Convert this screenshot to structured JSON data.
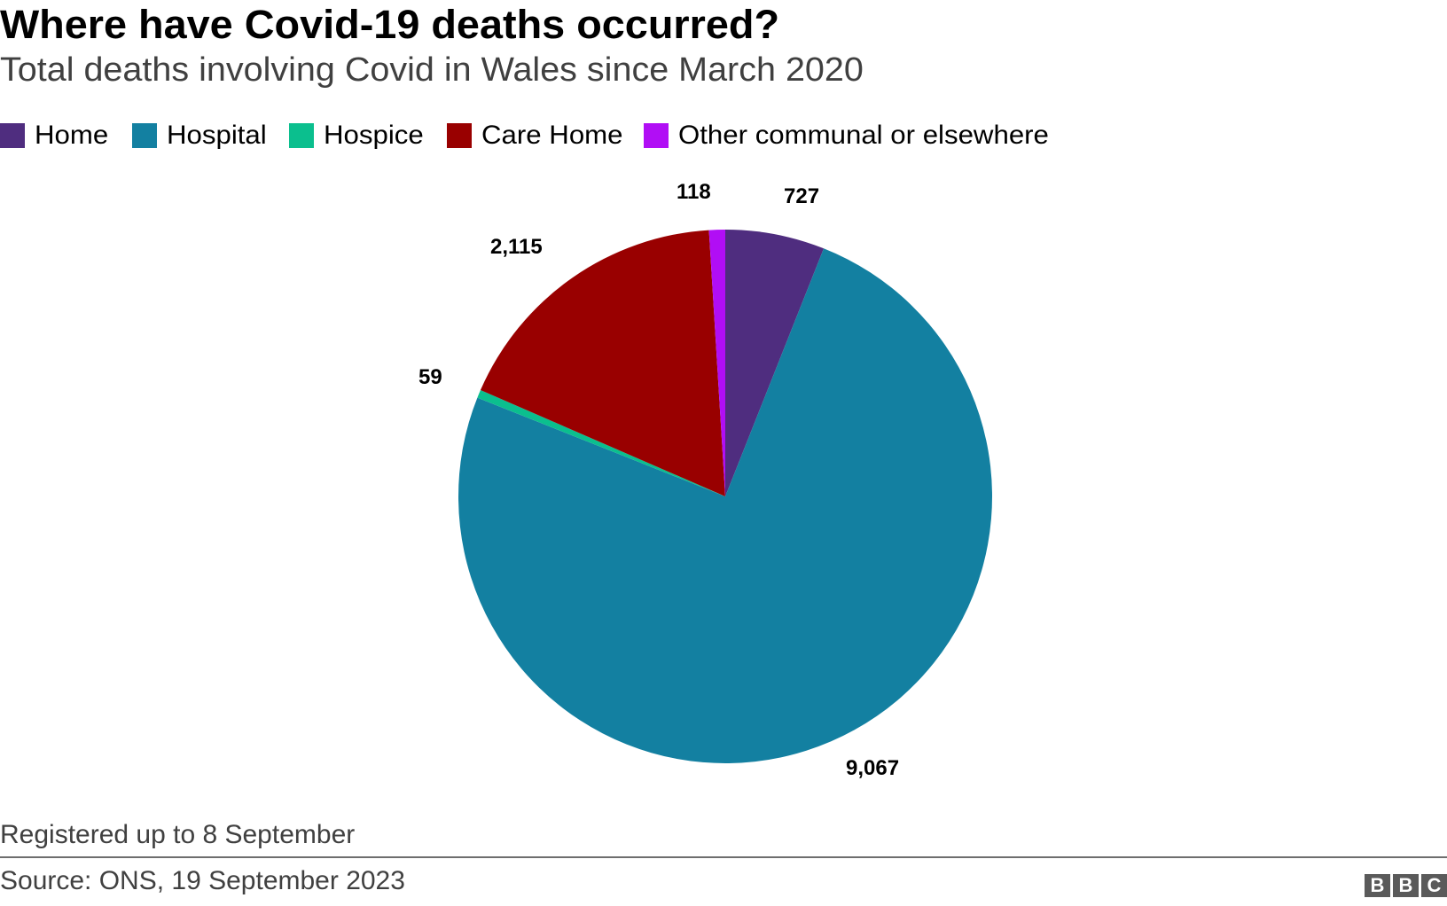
{
  "title": "Where have Covid-19 deaths occurred?",
  "subtitle": "Total deaths involving Covid in Wales since March 2020",
  "legend": [
    {
      "label": "Home",
      "color": "#4f2d7f"
    },
    {
      "label": "Hospital",
      "color": "#1380a1"
    },
    {
      "label": "Hospice",
      "color": "#0bbf8e"
    },
    {
      "label": "Care Home",
      "color": "#990000"
    },
    {
      "label": "Other communal or elsewhere",
      "color": "#b10ef5"
    }
  ],
  "labels": {
    "home": "727",
    "hospital": "9,067",
    "hospice": "59",
    "care_home": "2,115",
    "other": "118"
  },
  "footer": {
    "note": "Registered up to 8 September",
    "source": "Source: ONS, 19 September 2023",
    "logo": [
      "B",
      "B",
      "C"
    ]
  },
  "chart_data": {
    "type": "pie",
    "title": "Where have Covid-19 deaths occurred?",
    "subtitle": "Total deaths involving Covid in Wales since March 2020",
    "categories": [
      "Home",
      "Hospital",
      "Hospice",
      "Care Home",
      "Other communal or elsewhere"
    ],
    "values": [
      727,
      9067,
      59,
      2115,
      118
    ],
    "colors": [
      "#4f2d7f",
      "#1380a1",
      "#0bbf8e",
      "#990000",
      "#b10ef5"
    ],
    "start_angle_deg": 0,
    "direction": "clockwise",
    "legend_position": "top",
    "note": "Registered up to 8 September",
    "source": "Source: ONS, 19 September 2023"
  }
}
